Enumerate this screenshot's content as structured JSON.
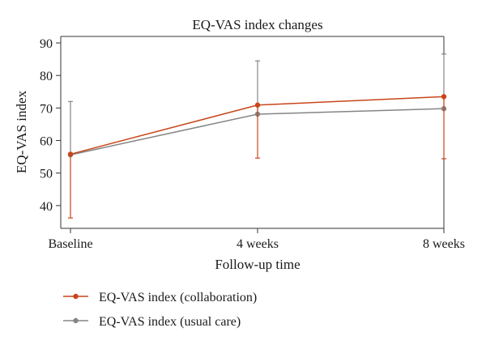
{
  "colors": {
    "collaboration": "#c8461a",
    "usual_care": "#858585",
    "axis": "#333333"
  },
  "chart_data": {
    "type": "line",
    "title": "EQ-VAS index changes",
    "xlabel": "Follow-up time",
    "ylabel": "EQ-VAS index",
    "categories": [
      "Baseline",
      "4 weeks",
      "8 weeks"
    ],
    "ylim": [
      33,
      92
    ],
    "yticks": [
      40,
      50,
      60,
      70,
      80,
      90
    ],
    "grid": false,
    "legend_position": "bottom-left",
    "series": [
      {
        "name": "EQ-VAS index (collaboration)",
        "color": "#c8461a",
        "values": [
          55.8,
          70.9,
          73.5
        ],
        "error_low": [
          36.2,
          54.6,
          54.4
        ],
        "error_high": [
          55.8,
          70.9,
          73.5
        ]
      },
      {
        "name": "EQ-VAS index (usual care)",
        "color": "#858585",
        "values": [
          55.6,
          68.1,
          69.8
        ],
        "error_low": [
          55.6,
          68.1,
          69.8
        ],
        "error_high": [
          72.0,
          84.5,
          86.6
        ]
      }
    ]
  }
}
